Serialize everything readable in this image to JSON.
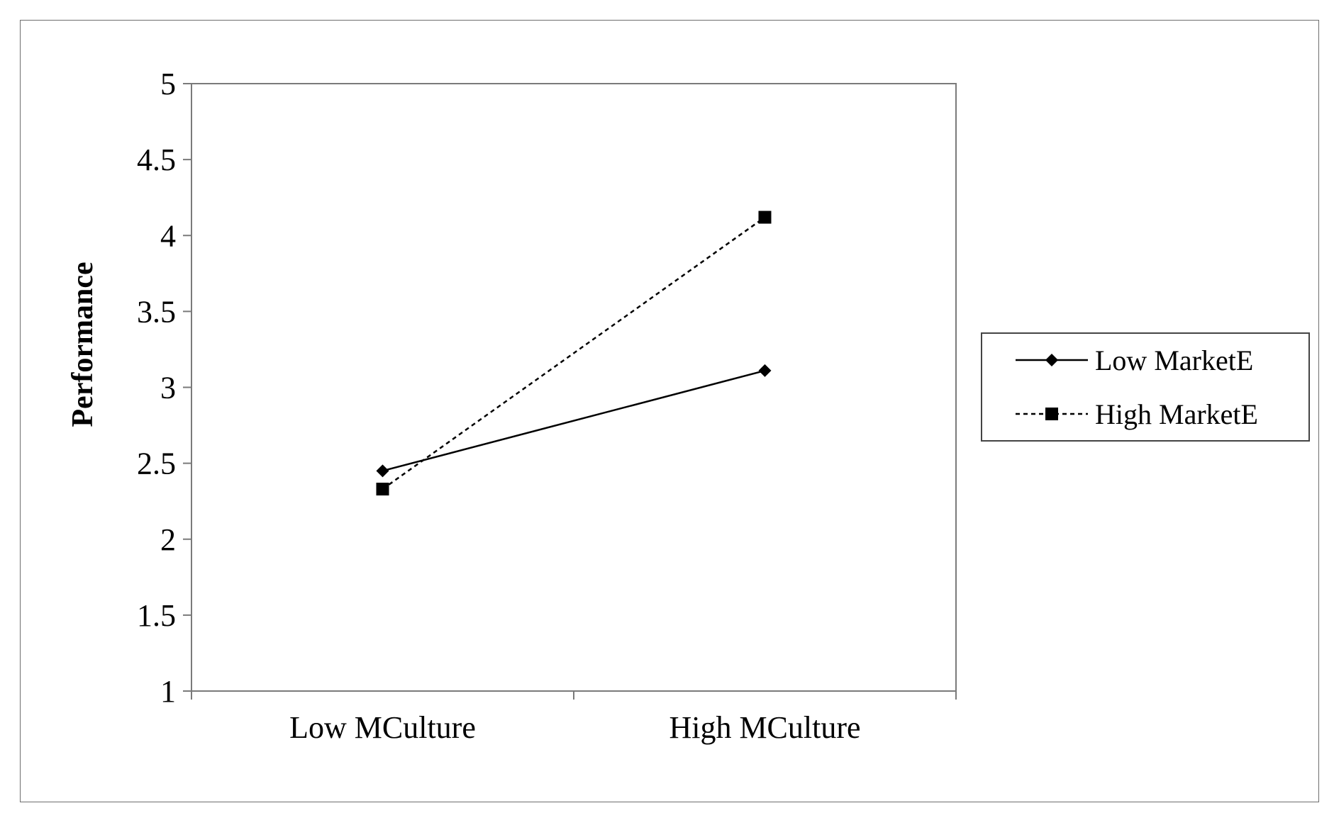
{
  "chart_data": {
    "type": "line",
    "categories": [
      "Low MCulture",
      "High MCulture"
    ],
    "ylabel": "Performance",
    "xlabel": "",
    "ylim": [
      1,
      5
    ],
    "yticks": [
      1,
      1.5,
      2,
      2.5,
      3,
      3.5,
      4,
      4.5,
      5
    ],
    "ytick_labels": [
      "1",
      "1.5",
      "2",
      "2.5",
      "3",
      "3.5",
      "4",
      "4.5",
      "5"
    ],
    "grid": false,
    "legend_position": "right",
    "series": [
      {
        "name": "Low MarketE",
        "values": [
          2.45,
          3.11
        ],
        "marker": "diamond",
        "line_style": "solid",
        "color": "#000000"
      },
      {
        "name": "High MarketE",
        "values": [
          2.33,
          4.12
        ],
        "marker": "square",
        "line_style": "dashed",
        "color": "#000000"
      }
    ]
  }
}
